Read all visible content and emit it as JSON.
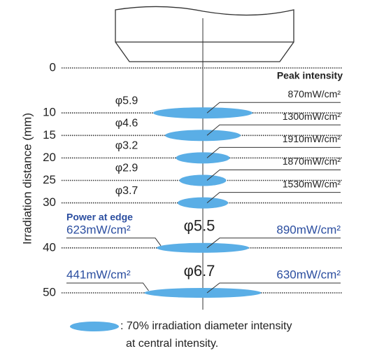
{
  "axis": {
    "title": "Irradiation distance (mm)",
    "ticks": [
      0,
      10,
      15,
      20,
      25,
      30,
      40,
      50
    ]
  },
  "peak_header": "Peak intensity",
  "edge_header": "Power at edge",
  "rows": [
    {
      "diameter": "φ5.9",
      "peak": "870mW/cm²"
    },
    {
      "diameter": "φ4.6",
      "peak": "1300mW/cm²"
    },
    {
      "diameter": "φ3.2",
      "peak": "1910mW/cm²"
    },
    {
      "diameter": "φ2.9",
      "peak": "1870mW/cm²"
    },
    {
      "diameter": "φ3.7",
      "peak": "1530mW/cm²"
    },
    {
      "diameter": "φ5.5",
      "peak": "890mW/cm²",
      "edge": "623mW/cm²"
    },
    {
      "diameter": "φ6.7",
      "peak": "630mW/cm²",
      "edge": "441mW/cm²"
    }
  ],
  "legend": [
    ": 70% irradiation diameter intensity",
    "at central intensity."
  ]
}
